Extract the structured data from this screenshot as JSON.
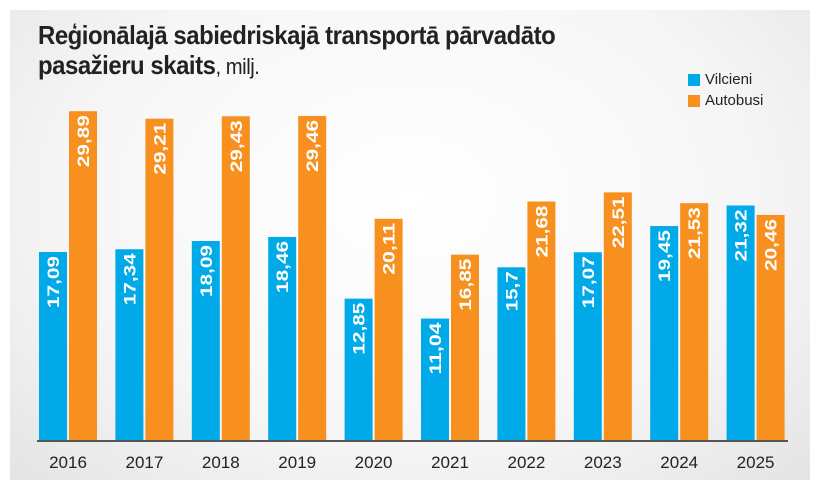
{
  "chart_data": {
    "type": "bar",
    "title": "Reģionālajā sabiedriskajā transportā pārvadāto pasažieru skaits",
    "title_line1": "Reģionālajā sabiedriskajā transportā pārvadāto",
    "title_line2": "pasažieru skaits",
    "unit": ", milj.",
    "xlabel": "",
    "ylabel": "",
    "ylim": [
      0,
      30
    ],
    "grid": false,
    "legend_position": "top-right",
    "categories": [
      "2016",
      "2017",
      "2018",
      "2019",
      "2020",
      "2021",
      "2022",
      "2023",
      "2024",
      "2025"
    ],
    "series": [
      {
        "name": "Vilcieni",
        "color": "#00a9e8",
        "values": [
          17.09,
          17.34,
          18.09,
          18.46,
          12.85,
          11.04,
          15.7,
          17.07,
          19.45,
          21.32
        ],
        "labels": [
          "17,09",
          "17,34",
          "18,09",
          "18,46",
          "12,85",
          "11,04",
          "15,7",
          "17,07",
          "19,45",
          "21,32"
        ]
      },
      {
        "name": "Autobusi",
        "color": "#f7901e",
        "values": [
          29.89,
          29.21,
          29.43,
          29.46,
          20.11,
          16.85,
          21.68,
          22.51,
          21.53,
          20.46
        ],
        "labels": [
          "29,89",
          "29,21",
          "29,43",
          "29,46",
          "20,11",
          "16,85",
          "21,68",
          "22,51",
          "21,53",
          "20,46"
        ]
      }
    ]
  }
}
